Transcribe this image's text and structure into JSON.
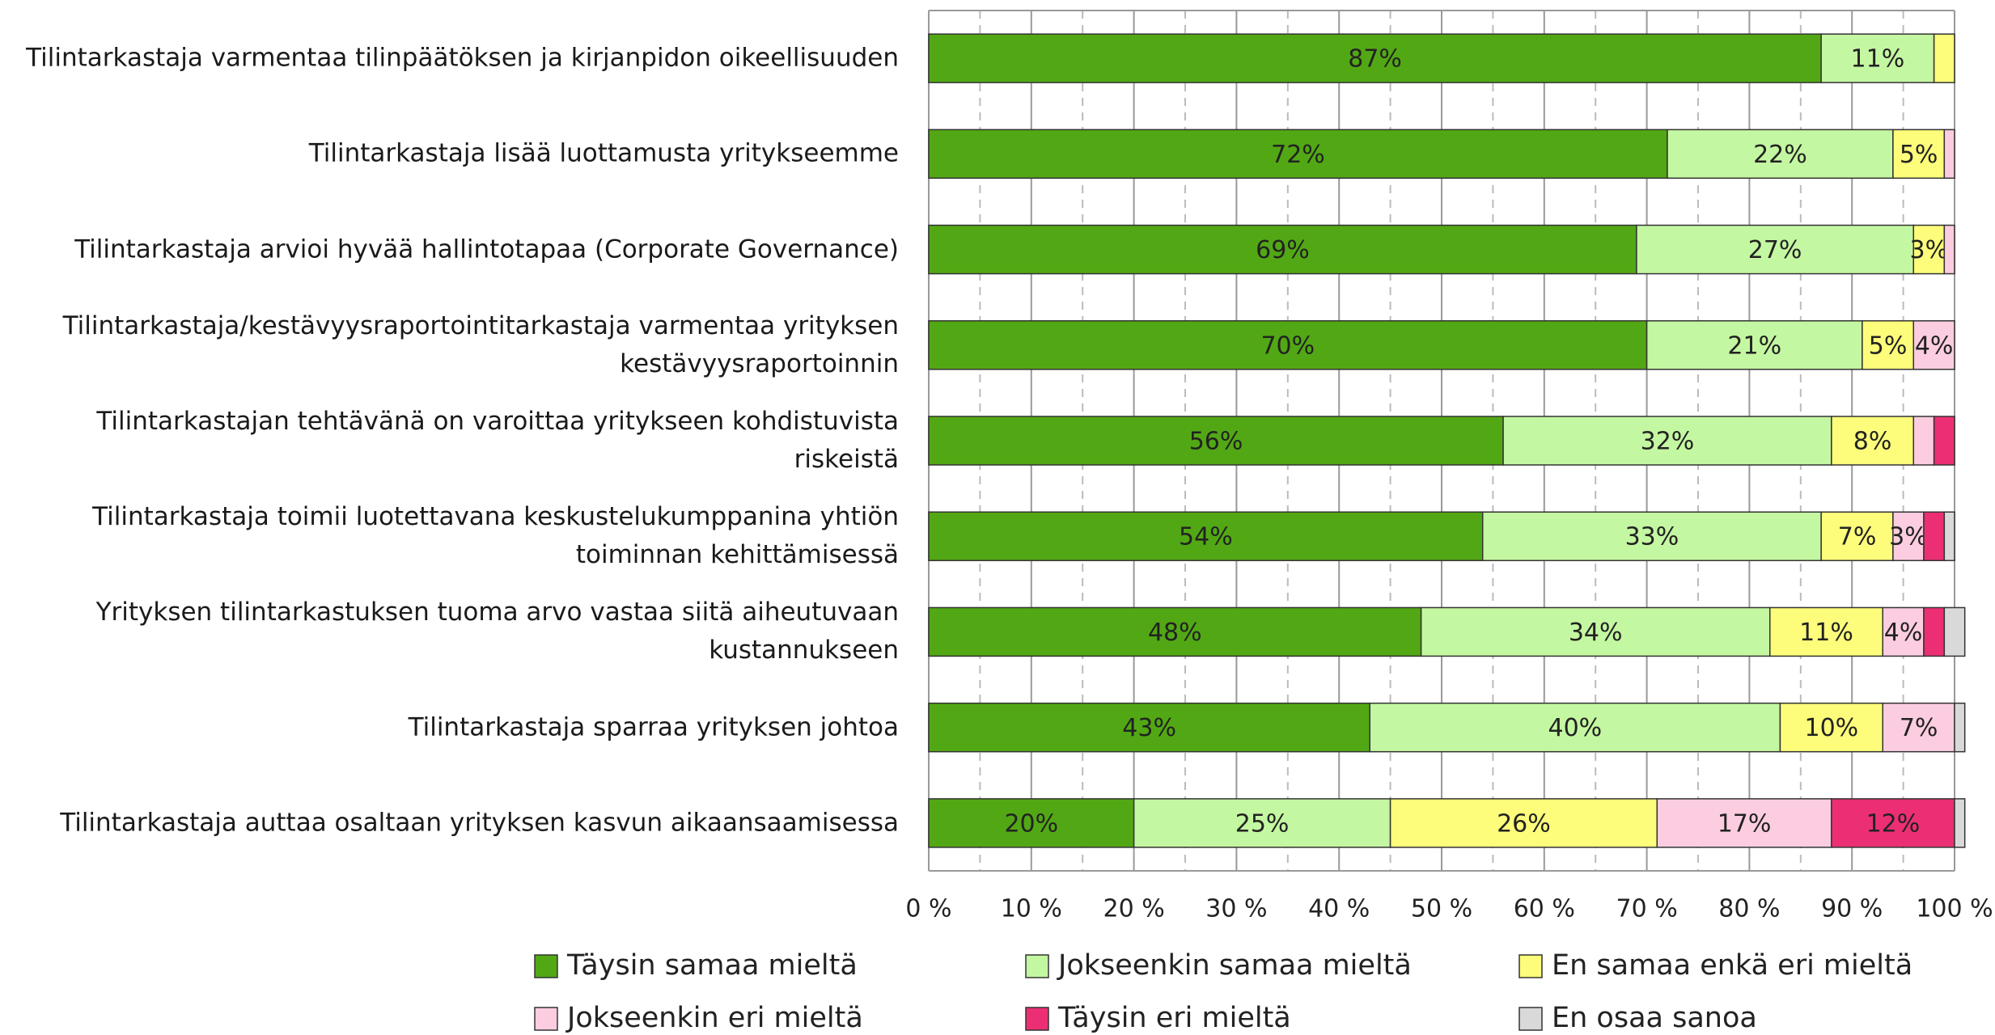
{
  "chart_data": {
    "type": "bar",
    "orientation": "horizontal",
    "stacked": true,
    "categories": [
      "Tilintarkastaja varmentaa tilinpäätöksen ja kirjanpidon oikeellisuuden",
      "Tilintarkastaja lisää luottamusta yritykseemme",
      "Tilintarkastaja arvioi hyvää hallintotapaa (Corporate Governance)",
      "Tilintarkastaja/kestävyysraportointitarkastaja varmentaa yrityksen\nkestävyysraportoinnin",
      "Tilintarkastajan tehtävänä on varoittaa yritykseen kohdistuvista\nriskeistä",
      "Tilintarkastaja toimii luotettavana keskustelukumppanina yhtiön\ntoiminnan kehittämisessä",
      "Yrityksen tilintarkastuksen tuoma arvo vastaa siitä aiheutuvaan\nkustannukseen",
      "Tilintarkastaja sparraa yrityksen johtoa",
      "Tilintarkastaja auttaa osaltaan yrityksen kasvun aikaansaamisessa"
    ],
    "series": [
      {
        "name": "Täysin samaa mieltä",
        "color": "#52a814",
        "values": [
          87,
          72,
          69,
          70,
          56,
          54,
          48,
          43,
          20
        ],
        "value_labels": [
          "87%",
          "72%",
          "69%",
          "70%",
          "56%",
          "54%",
          "48%",
          "43%",
          "20%"
        ]
      },
      {
        "name": "Jokseenkin samaa mieltä",
        "color": "#c4f7a1",
        "values": [
          11,
          22,
          27,
          21,
          32,
          33,
          34,
          40,
          25
        ],
        "value_labels": [
          "11%",
          "22%",
          "27%",
          "21%",
          "32%",
          "33%",
          "34%",
          "40%",
          "25%"
        ]
      },
      {
        "name": "En samaa enkä eri mieltä",
        "color": "#fdfd7b",
        "values": [
          2,
          5,
          3,
          5,
          8,
          7,
          11,
          10,
          26
        ],
        "value_labels": [
          null,
          "5%",
          "3%",
          "5%",
          "8%",
          "7%",
          "11%",
          "10%",
          "26%"
        ]
      },
      {
        "name": "Jokseenkin eri mieltä",
        "color": "#fccde0",
        "values": [
          0,
          1,
          1,
          4,
          2,
          3,
          4,
          7,
          17
        ],
        "value_labels": [
          null,
          null,
          null,
          "4%",
          null,
          "3%",
          "4%",
          "7%",
          "17%"
        ]
      },
      {
        "name": "Täysin eri mieltä",
        "color": "#ec2f74",
        "values": [
          0,
          0,
          0,
          0,
          2,
          2,
          2,
          0,
          12
        ],
        "value_labels": [
          null,
          null,
          null,
          null,
          null,
          null,
          null,
          null,
          "12%"
        ]
      },
      {
        "name": "En osaa sanoa",
        "color": "#d9d9d9",
        "values": [
          0,
          0,
          0,
          0,
          0,
          1,
          2,
          1,
          1
        ],
        "value_labels": [
          null,
          null,
          null,
          null,
          null,
          null,
          null,
          null,
          null
        ]
      }
    ],
    "xlim": [
      0,
      100
    ],
    "xticks": [
      {
        "value": 0,
        "label": "0 %"
      },
      {
        "value": 10,
        "label": "10 %"
      },
      {
        "value": 20,
        "label": "20 %"
      },
      {
        "value": 30,
        "label": "30 %"
      },
      {
        "value": 40,
        "label": "40 %"
      },
      {
        "value": 50,
        "label": "50 %"
      },
      {
        "value": 60,
        "label": "60 %"
      },
      {
        "value": 70,
        "label": "70 %"
      },
      {
        "value": 80,
        "label": "80 %"
      },
      {
        "value": 90,
        "label": "90 %"
      },
      {
        "value": 100,
        "label": "100 %"
      }
    ],
    "grid": true,
    "legend": "bottom"
  }
}
